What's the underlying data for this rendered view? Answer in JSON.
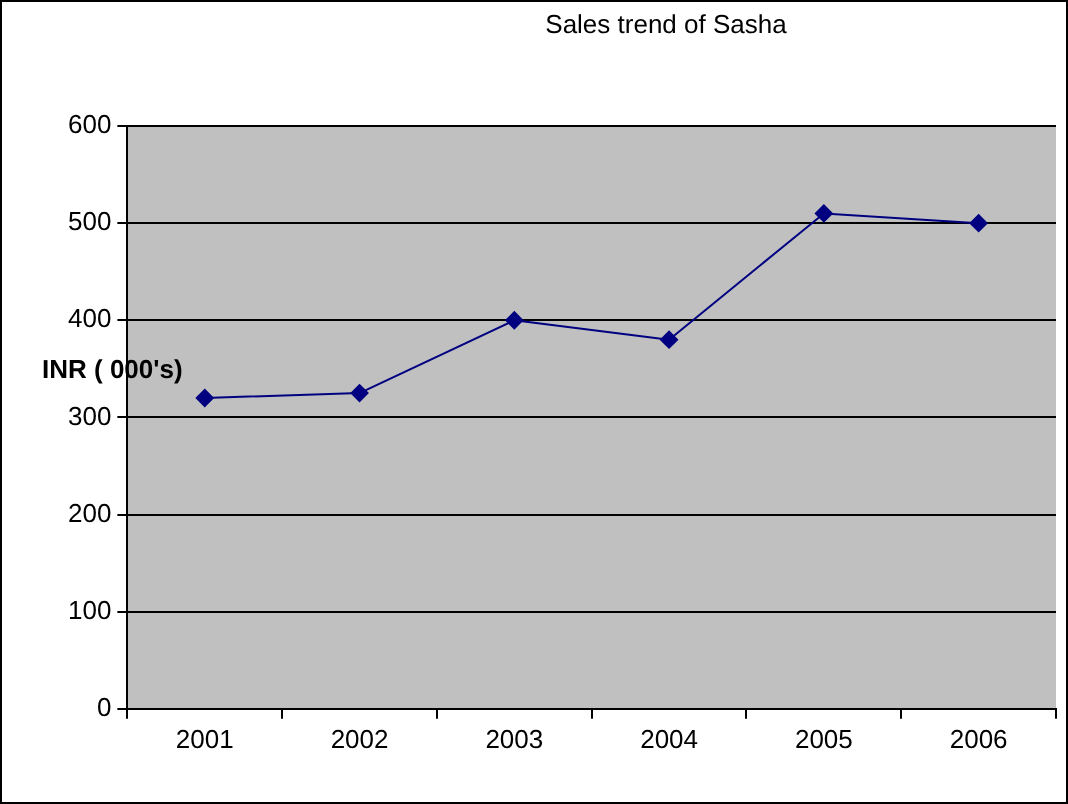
{
  "chart_data": {
    "type": "line",
    "title": "Sales trend of Sasha",
    "ylabel": "INR ( 000's)",
    "categories": [
      "2001",
      "2002",
      "2003",
      "2004",
      "2005",
      "2006"
    ],
    "series": [
      {
        "color": "#000080",
        "values": [
          320,
          325,
          400,
          380,
          510,
          500
        ]
      }
    ],
    "ylim": [
      0,
      600
    ],
    "yticks": [
      0,
      100,
      200,
      300,
      400,
      500,
      600
    ],
    "grid": "y",
    "legend": false,
    "marker": "diamond",
    "line_style": "solid"
  }
}
